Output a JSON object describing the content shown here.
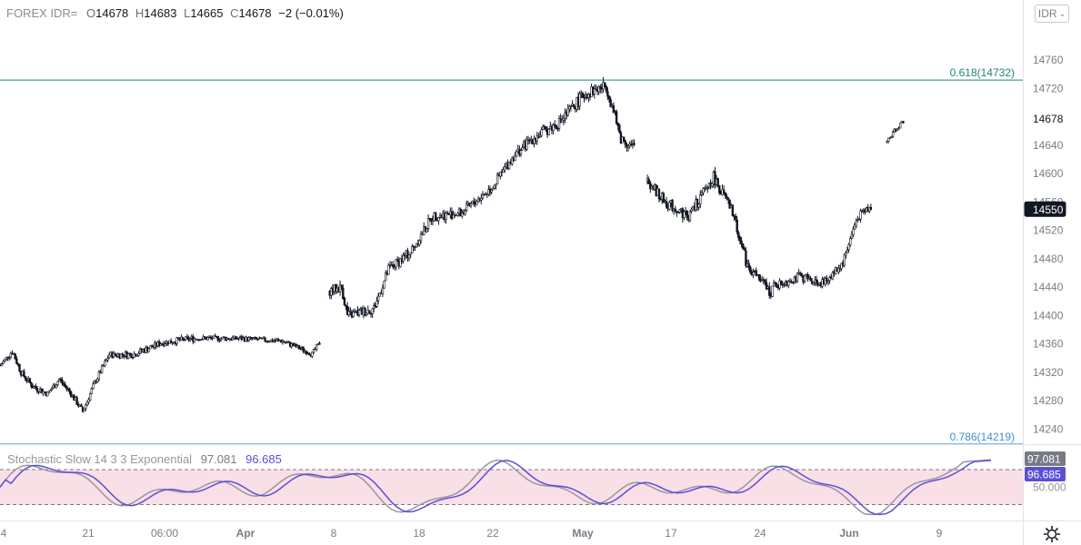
{
  "legend": {
    "symbol": "FOREX IDR=",
    "open_label": "O",
    "open": "14678",
    "high_label": "H",
    "high": "14683",
    "low_label": "L",
    "low": "14665",
    "close_label": "C",
    "close": "14678",
    "change": "−2 (−0.01%)"
  },
  "currency_button": {
    "label": "IDR",
    "icon": "chevron-down-icon"
  },
  "indicator": {
    "label": "Stochastic Slow 14 3 3 Exponential",
    "k_value": "97.081",
    "d_value": "96.685"
  },
  "settings_icon": "gear-icon",
  "chart_data": {
    "type": "candlestick",
    "y_axis": {
      "ticks": [
        14240,
        14280,
        14320,
        14360,
        14400,
        14440,
        14480,
        14520,
        14560,
        14600,
        14640,
        14680,
        14720,
        14760
      ],
      "range": [
        14210,
        14790
      ]
    },
    "x_ticks": [
      "4",
      "21",
      "06:00",
      "Apr",
      "8",
      "18",
      "22",
      "May",
      "17",
      "24",
      "Jun",
      "9"
    ],
    "bold_x_ticks": [
      "Apr",
      "May",
      "Jun"
    ],
    "fib_levels": [
      {
        "label": "0.618(14732)",
        "value": 14732,
        "color": "#22847a"
      },
      {
        "label": "0.786(14219)",
        "value": 14219,
        "color": "#3d8fd1"
      }
    ],
    "price_labels": [
      {
        "label": "14678",
        "value": 14678,
        "style": "outline"
      },
      {
        "label": "14550",
        "value": 14550,
        "style": "dark"
      }
    ],
    "segments": [
      {
        "n": 132,
        "path": [
          [
            0,
            14330
          ],
          [
            8,
            14350
          ],
          [
            14,
            14320
          ],
          [
            22,
            14300
          ],
          [
            32,
            14290
          ],
          [
            40,
            14310
          ],
          [
            48,
            14290
          ],
          [
            56,
            14265
          ],
          [
            64,
            14305
          ],
          [
            74,
            14345
          ],
          [
            90,
            14345
          ],
          [
            110,
            14362
          ],
          [
            132,
            14368
          ]
        ],
        "vol": 9
      },
      {
        "n": 86,
        "path": [
          [
            0,
            14368
          ],
          [
            30,
            14368
          ],
          [
            60,
            14364
          ],
          [
            80,
            14346
          ],
          [
            86,
            14364
          ]
        ],
        "vol": 7
      },
      {
        "n": 0,
        "gap": 6
      },
      {
        "n": 138,
        "path": [
          [
            0,
            14435
          ],
          [
            8,
            14440
          ],
          [
            12,
            14400
          ],
          [
            22,
            14405
          ],
          [
            30,
            14410
          ],
          [
            40,
            14465
          ],
          [
            55,
            14490
          ],
          [
            70,
            14540
          ],
          [
            90,
            14545
          ],
          [
            110,
            14580
          ],
          [
            125,
            14625
          ],
          [
            138,
            14650
          ]
        ],
        "vol": 14
      },
      {
        "n": 70,
        "path": [
          [
            0,
            14650
          ],
          [
            18,
            14672
          ],
          [
            35,
            14712
          ],
          [
            50,
            14724
          ],
          [
            60,
            14650
          ],
          [
            70,
            14635
          ]
        ],
        "vol": 16
      },
      {
        "n": 0,
        "gap": 8
      },
      {
        "n": 85,
        "path": [
          [
            0,
            14590
          ],
          [
            12,
            14560
          ],
          [
            28,
            14540
          ],
          [
            45,
            14595
          ],
          [
            58,
            14545
          ],
          [
            68,
            14470
          ],
          [
            85,
            14430
          ]
        ],
        "vol": 15
      },
      {
        "n": 68,
        "path": [
          [
            0,
            14440
          ],
          [
            18,
            14455
          ],
          [
            35,
            14445
          ],
          [
            48,
            14475
          ],
          [
            58,
            14540
          ],
          [
            68,
            14555
          ]
        ],
        "vol": 12
      },
      {
        "n": 0,
        "gap": 10
      },
      {
        "n": 12,
        "path": [
          [
            0,
            14645
          ],
          [
            6,
            14663
          ],
          [
            12,
            14676
          ]
        ],
        "vol": 6
      }
    ],
    "stochastic": {
      "ylim": [
        0,
        100
      ],
      "bands": [
        80,
        20
      ],
      "band_label": "50.000",
      "k_last": 97.081,
      "d_last": 96.685,
      "k_color": "#9598a1",
      "d_color": "#5b4fd6",
      "band_fill": "#f9dfe6"
    }
  }
}
